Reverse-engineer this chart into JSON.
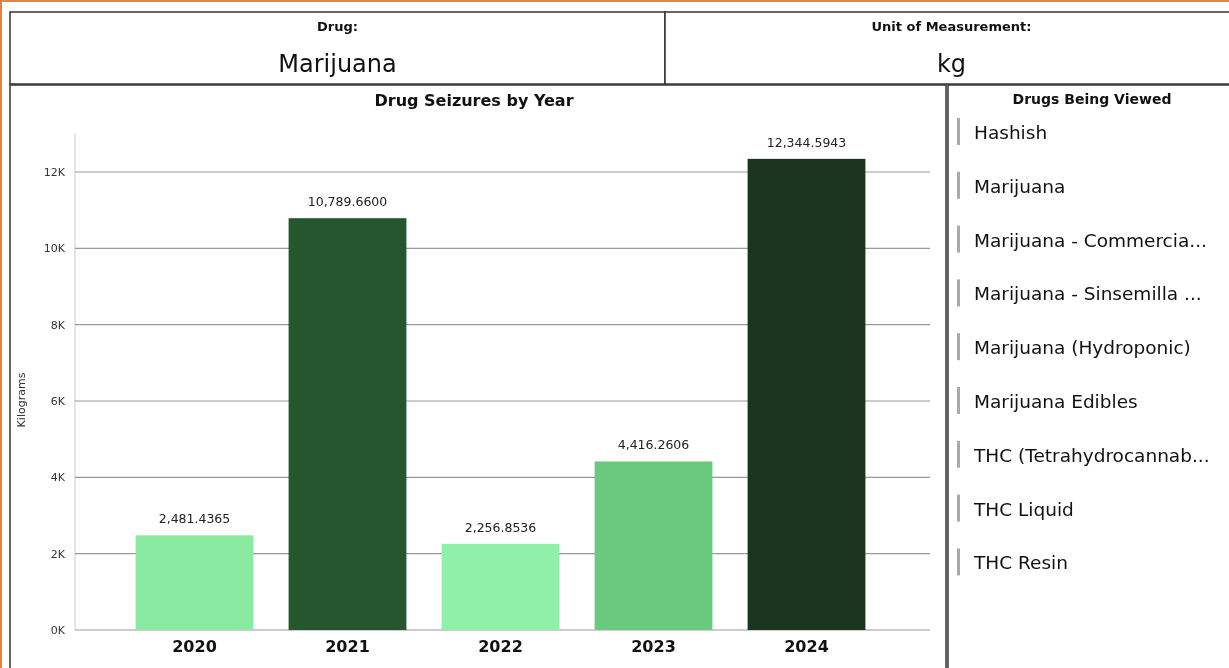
{
  "chart_data": [
    {
      "type": "other",
      "title": "Drug:",
      "annotations": [
        "Marijuana"
      ]
    },
    {
      "type": "other",
      "title": "Unit of Measurement:",
      "annotations": [
        "kg"
      ]
    },
    {
      "type": "bar",
      "title": "Drug Seizures by Year",
      "ylabel": "Kilograms",
      "categories": [
        "2020",
        "2021",
        "2022",
        "2023",
        "2024"
      ],
      "values": [
        2481.4365,
        10789.66,
        2256.8536,
        4416.2606,
        12344.5943
      ],
      "colors": [
        "#8aeaa2",
        "#25562d",
        "#90efa8",
        "#6bc87f",
        "#1a361f"
      ],
      "value_labels": [
        "2,481.4365",
        "10,789.6600",
        "2,256.8536",
        "4,416.2606",
        "12,344.5943"
      ],
      "yticks": [
        {
          "value": 0,
          "label": "0K"
        },
        {
          "value": 2000,
          "label": "2K"
        },
        {
          "value": 4000,
          "label": "4K"
        },
        {
          "value": 6000,
          "label": "6K"
        },
        {
          "value": 8000,
          "label": "8K"
        },
        {
          "value": 10000,
          "label": "10K"
        },
        {
          "value": 12000,
          "label": "12K"
        }
      ],
      "ylim": [
        0,
        13000
      ],
      "grid": "y"
    },
    {
      "type": "other",
      "title": "Drugs Being Viewed",
      "annotations": [
        "Hashish",
        "Marijuana",
        "Marijuana - Commercia...",
        "Marijuana - Sinsemilla ...",
        "Marijuana (Hydroponic)",
        "Marijuana Edibles",
        "THC (Tetrahydrocannab...",
        "THC Liquid",
        "THC Resin"
      ]
    }
  ]
}
